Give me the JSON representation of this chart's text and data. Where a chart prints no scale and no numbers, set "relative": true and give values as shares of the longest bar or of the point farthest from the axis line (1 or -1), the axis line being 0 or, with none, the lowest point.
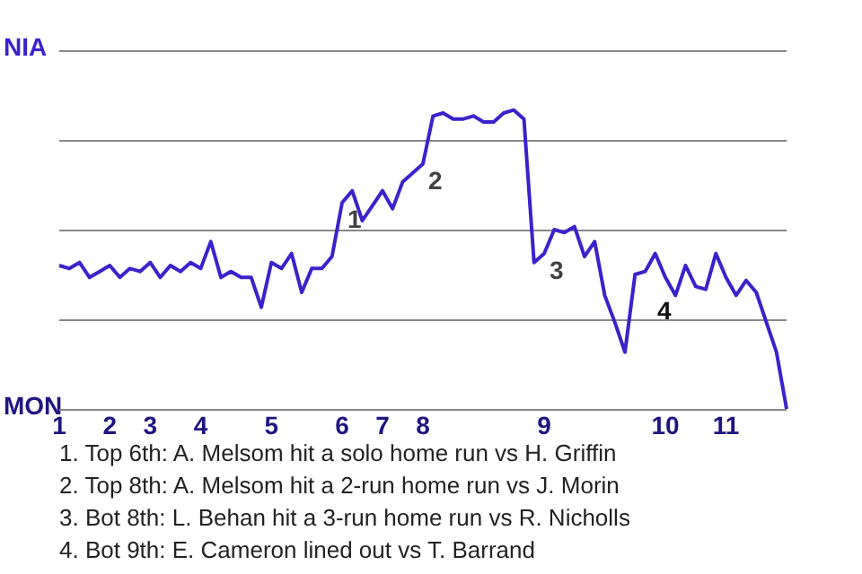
{
  "chart_data": {
    "type": "line",
    "categories": [
      "1",
      null,
      null,
      null,
      null,
      "2",
      null,
      null,
      null,
      "3",
      null,
      null,
      null,
      null,
      "4",
      null,
      null,
      null,
      null,
      null,
      null,
      "5",
      null,
      null,
      null,
      null,
      null,
      null,
      "6",
      null,
      null,
      null,
      "7",
      null,
      null,
      null,
      "8",
      null,
      null,
      null,
      null,
      null,
      null,
      null,
      null,
      null,
      null,
      null,
      "9",
      null,
      null,
      null,
      null,
      null,
      null,
      null,
      null,
      null,
      null,
      null,
      "10",
      null,
      null,
      null,
      null,
      null,
      "11",
      null,
      null,
      null,
      null,
      null,
      null
    ],
    "series": [
      {
        "color": "#3a22cc",
        "values": [
          0.48,
          0.47,
          0.49,
          0.44,
          0.46,
          0.48,
          0.44,
          0.47,
          0.46,
          0.49,
          0.44,
          0.48,
          0.46,
          0.49,
          0.47,
          0.56,
          0.44,
          0.46,
          0.44,
          0.44,
          0.34,
          0.49,
          0.47,
          0.52,
          0.39,
          0.47,
          0.47,
          0.51,
          0.69,
          0.73,
          0.63,
          0.68,
          0.73,
          0.67,
          0.76,
          0.79,
          0.82,
          0.98,
          0.99,
          0.97,
          0.97,
          0.98,
          0.96,
          0.96,
          0.99,
          1,
          0.97,
          0.49,
          0.52,
          0.6,
          0.59,
          0.61,
          0.51,
          0.56,
          0.38,
          0.29,
          0.19,
          0.45,
          0.46,
          0.52,
          0.44,
          0.38,
          0.48,
          0.41,
          0.4,
          0.52,
          0.44,
          0.38,
          0.43,
          0.39,
          0.29,
          0.19,
          0
        ]
      }
    ],
    "relative": true,
    "grid": "y",
    "marker": "none",
    "annotations": [
      {
        "text": "1",
        "x": "6",
        "y": 0.69
      },
      {
        "text": "2",
        "x": "8",
        "y": 0.82
      },
      {
        "text": "3",
        "x": "9",
        "y": 0.52
      },
      "4",
      "NIA",
      "MON",
      "1. Top 6th: A. Melsom hit a solo home run vs H. Griffin",
      "2. Top 8th: A. Melsom hit a 2-run home run vs J. Morin",
      "3. Bot 8th: L. Behan hit a 3-run home run vs R. Nicholls",
      "4. Bot 9th: E. Cameron lined out vs T. Barrand"
    ]
  }
}
